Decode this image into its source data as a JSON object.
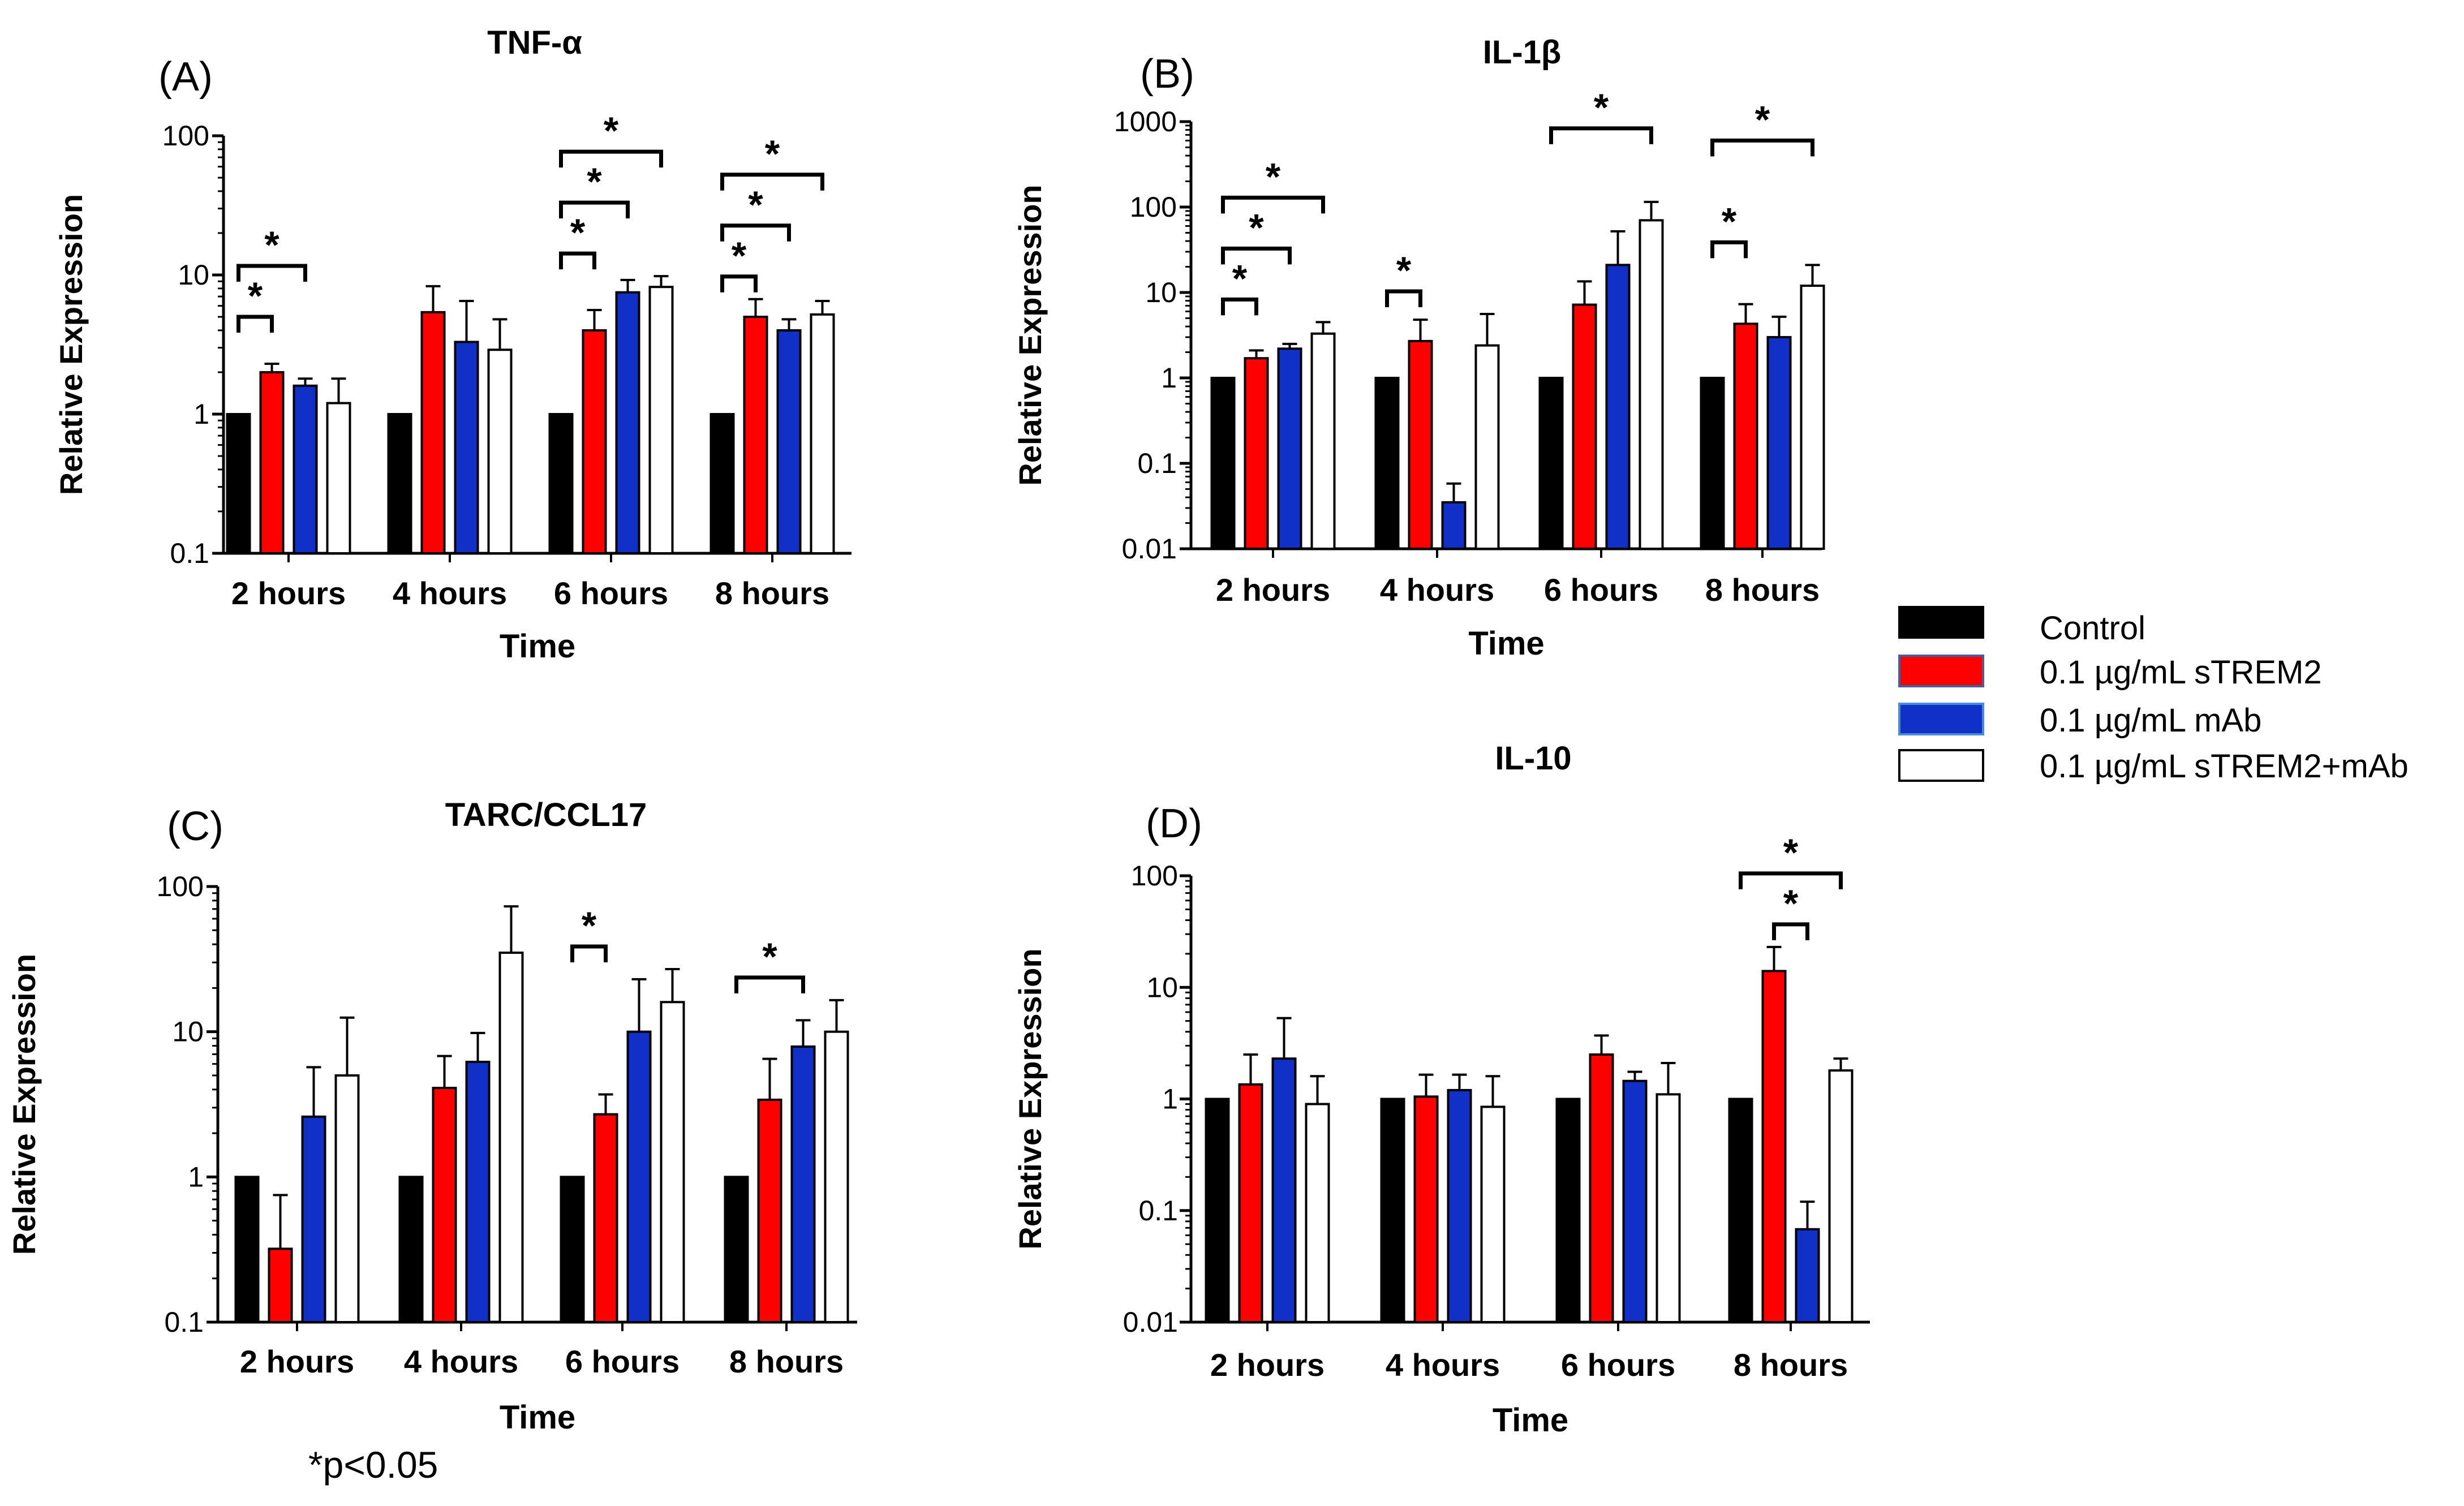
{
  "legend": [
    {
      "label": "Control",
      "color": "#000000"
    },
    {
      "label": "0.1 µg/mL sTREM2",
      "color": "#ff0000"
    },
    {
      "label": "0.1 µg/mL mAb",
      "color": "#1030c8"
    },
    {
      "label": "0.1 µg/mL sTREM2+mAb",
      "color": "#ffffff"
    }
  ],
  "footnote": "*p<0.05",
  "chart_data": [
    {
      "panel": "(A)",
      "title": "TNF-α",
      "type": "bar",
      "yscale": "log",
      "xlabel": "Time",
      "ylabel": "Relative Expression",
      "ylim": [
        0.1,
        100
      ],
      "yticks": [
        "0.1",
        "1",
        "10",
        "100"
      ],
      "categories": [
        "2 hours",
        "4 hours",
        "6 hours",
        "8 hours"
      ],
      "series": [
        {
          "name": "Control",
          "values": [
            1,
            1,
            1,
            1
          ],
          "errors": [
            null,
            null,
            null,
            null
          ]
        },
        {
          "name": "0.1 µg/mL sTREM2",
          "values": [
            2.0,
            5.4,
            4.0,
            5.0
          ],
          "errors": [
            2.3,
            8.3,
            5.6,
            6.7
          ]
        },
        {
          "name": "0.1 µg/mL mAb",
          "values": [
            1.6,
            3.3,
            7.5,
            4.0
          ],
          "errors": [
            1.8,
            6.5,
            9.2,
            4.8
          ]
        },
        {
          "name": "0.1 µg/mL sTREM2+mAb",
          "values": [
            1.2,
            2.9,
            8.2,
            5.2
          ],
          "errors": [
            1.8,
            4.8,
            9.8,
            6.5
          ]
        }
      ],
      "significance": [
        {
          "category": 0,
          "from": 0,
          "to": 1,
          "level": 1,
          "label": "*"
        },
        {
          "category": 0,
          "from": 0,
          "to": 2,
          "level": 2,
          "label": "*"
        },
        {
          "category": 2,
          "from": 0,
          "to": 1,
          "level": 1,
          "label": "*"
        },
        {
          "category": 2,
          "from": 0,
          "to": 2,
          "level": 2,
          "label": "*"
        },
        {
          "category": 2,
          "from": 0,
          "to": 3,
          "level": 3,
          "label": "*"
        },
        {
          "category": 3,
          "from": 0,
          "to": 1,
          "level": 1,
          "label": "*"
        },
        {
          "category": 3,
          "from": 0,
          "to": 2,
          "level": 2,
          "label": "*"
        },
        {
          "category": 3,
          "from": 0,
          "to": 3,
          "level": 3,
          "label": "*"
        }
      ]
    },
    {
      "panel": "(B)",
      "title": "IL-1β",
      "type": "bar",
      "yscale": "log",
      "xlabel": "Time",
      "ylabel": "Relative Expression",
      "ylim": [
        0.01,
        1000
      ],
      "yticks": [
        "0.01",
        "0.1",
        "1",
        "10",
        "100",
        "1000"
      ],
      "categories": [
        "2 hours",
        "4 hours",
        "6 hours",
        "8 hours"
      ],
      "series": [
        {
          "name": "Control",
          "values": [
            1,
            1,
            1,
            1
          ],
          "errors": [
            null,
            null,
            null,
            null
          ]
        },
        {
          "name": "0.1 µg/mL sTREM2",
          "values": [
            1.7,
            2.7,
            7.2,
            4.3
          ],
          "errors": [
            2.1,
            4.8,
            13.5,
            7.3
          ]
        },
        {
          "name": "0.1 µg/mL mAb",
          "values": [
            2.2,
            0.035,
            21,
            3.0
          ],
          "errors": [
            2.5,
            0.058,
            52,
            5.2
          ]
        },
        {
          "name": "0.1 µg/mL sTREM2+mAb",
          "values": [
            3.3,
            2.4,
            70,
            12
          ],
          "errors": [
            4.5,
            5.6,
            115,
            21
          ]
        }
      ],
      "significance": [
        {
          "category": 0,
          "from": 0,
          "to": 1,
          "level": 1,
          "label": "*"
        },
        {
          "category": 0,
          "from": 0,
          "to": 2,
          "level": 2,
          "label": "*"
        },
        {
          "category": 0,
          "from": 0,
          "to": 3,
          "level": 3,
          "label": "*"
        },
        {
          "category": 1,
          "from": 0,
          "to": 1,
          "level": 1,
          "label": "*"
        },
        {
          "category": 2,
          "from": 0,
          "to": 3,
          "level": 2,
          "label": "*"
        },
        {
          "category": 3,
          "from": 0,
          "to": 1,
          "level": 1,
          "label": "*"
        },
        {
          "category": 3,
          "from": 0,
          "to": 3,
          "level": 3,
          "label": "*"
        }
      ]
    },
    {
      "panel": "(C)",
      "title": "TARC/CCL17",
      "type": "bar",
      "yscale": "log",
      "xlabel": "Time",
      "ylabel": "Relative Expression",
      "ylim": [
        0.1,
        100
      ],
      "yticks": [
        "0.1",
        "1",
        "10",
        "100"
      ],
      "categories": [
        "2 hours",
        "4 hours",
        "6 hours",
        "8 hours"
      ],
      "series": [
        {
          "name": "Control",
          "values": [
            1,
            1,
            1,
            1
          ],
          "errors": [
            null,
            null,
            null,
            null
          ]
        },
        {
          "name": "0.1 µg/mL sTREM2",
          "values": [
            0.32,
            4.1,
            2.7,
            3.4
          ],
          "errors": [
            0.75,
            6.8,
            3.7,
            6.5
          ]
        },
        {
          "name": "0.1 µg/mL mAb",
          "values": [
            2.6,
            6.2,
            10,
            7.9
          ],
          "errors": [
            5.7,
            9.8,
            23,
            12
          ]
        },
        {
          "name": "0.1 µg/mL sTREM2+mAb",
          "values": [
            5.0,
            35,
            16,
            10
          ],
          "errors": [
            12.5,
            73,
            27,
            16.5
          ]
        }
      ],
      "significance": [
        {
          "category": 2,
          "from": 0,
          "to": 1,
          "level": 1,
          "label": "*"
        },
        {
          "category": 3,
          "from": 0,
          "to": 2,
          "level": 1,
          "label": "*"
        }
      ]
    },
    {
      "panel": "(D)",
      "title": "IL-10",
      "type": "bar",
      "yscale": "log",
      "xlabel": "Time",
      "ylabel": "Relative Expression",
      "ylim": [
        0.01,
        100
      ],
      "yticks": [
        "0.01",
        "0.1",
        "1",
        "10",
        "100"
      ],
      "categories": [
        "2 hours",
        "4 hours",
        "6 hours",
        "8 hours"
      ],
      "series": [
        {
          "name": "Control",
          "values": [
            1,
            1,
            1,
            1
          ],
          "errors": [
            null,
            null,
            null,
            null
          ]
        },
        {
          "name": "0.1 µg/mL sTREM2",
          "values": [
            1.35,
            1.05,
            2.5,
            14
          ],
          "errors": [
            2.5,
            1.65,
            3.7,
            23
          ]
        },
        {
          "name": "0.1 µg/mL mAb",
          "values": [
            2.3,
            1.2,
            1.45,
            0.068
          ],
          "errors": [
            5.3,
            1.65,
            1.75,
            0.12
          ]
        },
        {
          "name": "0.1 µg/mL sTREM2+mAb",
          "values": [
            0.9,
            0.85,
            1.1,
            1.8
          ],
          "errors": [
            1.6,
            1.6,
            2.1,
            2.3
          ]
        }
      ],
      "significance": [
        {
          "category": 3,
          "from": 1,
          "to": 2,
          "level": 1,
          "label": "*"
        },
        {
          "category": 3,
          "from": 0,
          "to": 3,
          "level": 2,
          "label": "*"
        }
      ]
    }
  ]
}
